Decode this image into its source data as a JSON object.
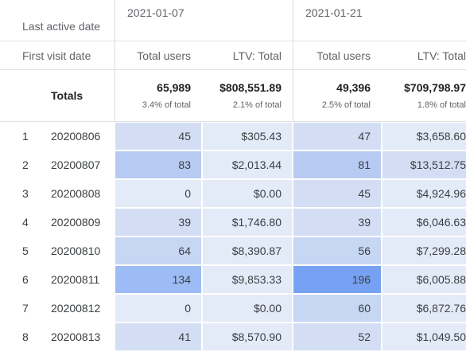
{
  "header": {
    "row_dimension_label": "Last active date",
    "column_dimension_label": "First visit date",
    "dates": [
      "2021-01-07",
      "2021-01-21"
    ],
    "metrics": [
      "Total users",
      "LTV: Total",
      "Total users",
      "LTV: Total"
    ]
  },
  "totals": {
    "label": "Totals",
    "values": [
      "65,989",
      "$808,551.89",
      "49,396",
      "$709,798.97"
    ],
    "subs": [
      "3.4% of total",
      "2.1% of total",
      "2.5% of total",
      "1.8% of total"
    ]
  },
  "rows": [
    {
      "index": "1",
      "date": "20200806",
      "values": [
        "45",
        "$305.43",
        "47",
        "$3,658.60"
      ]
    },
    {
      "index": "2",
      "date": "20200807",
      "values": [
        "83",
        "$2,013.44",
        "81",
        "$13,512.75"
      ]
    },
    {
      "index": "3",
      "date": "20200808",
      "values": [
        "0",
        "$0.00",
        "45",
        "$4,924.96"
      ]
    },
    {
      "index": "4",
      "date": "20200809",
      "values": [
        "39",
        "$1,746.80",
        "39",
        "$6,046.63"
      ]
    },
    {
      "index": "5",
      "date": "20200810",
      "values": [
        "64",
        "$8,390.87",
        "56",
        "$7,299.28"
      ]
    },
    {
      "index": "6",
      "date": "20200811",
      "values": [
        "134",
        "$9,853.33",
        "196",
        "$6,005.88"
      ]
    },
    {
      "index": "7",
      "date": "20200812",
      "values": [
        "0",
        "$0.00",
        "60",
        "$6,872.76"
      ]
    },
    {
      "index": "8",
      "date": "20200813",
      "values": [
        "41",
        "$8,570.90",
        "52",
        "$1,049.50"
      ]
    }
  ],
  "heat_colors": {
    "base": "#e3eaf8",
    "light": "#d3def5",
    "mid": "#c6d6f3",
    "strong": "#b7caf1",
    "stronger": "#9dbbf5",
    "strongest": "#77a2f3"
  },
  "heat_levels": [
    [
      "light",
      "base",
      "light",
      "base"
    ],
    [
      "strong",
      "base",
      "strong",
      "light"
    ],
    [
      "base",
      "base",
      "light",
      "base"
    ],
    [
      "light",
      "base",
      "light",
      "base"
    ],
    [
      "mid",
      "base",
      "mid",
      "base"
    ],
    [
      "stronger",
      "base",
      "strongest",
      "base"
    ],
    [
      "base",
      "base",
      "mid",
      "base"
    ],
    [
      "light",
      "base",
      "light",
      "base"
    ]
  ]
}
